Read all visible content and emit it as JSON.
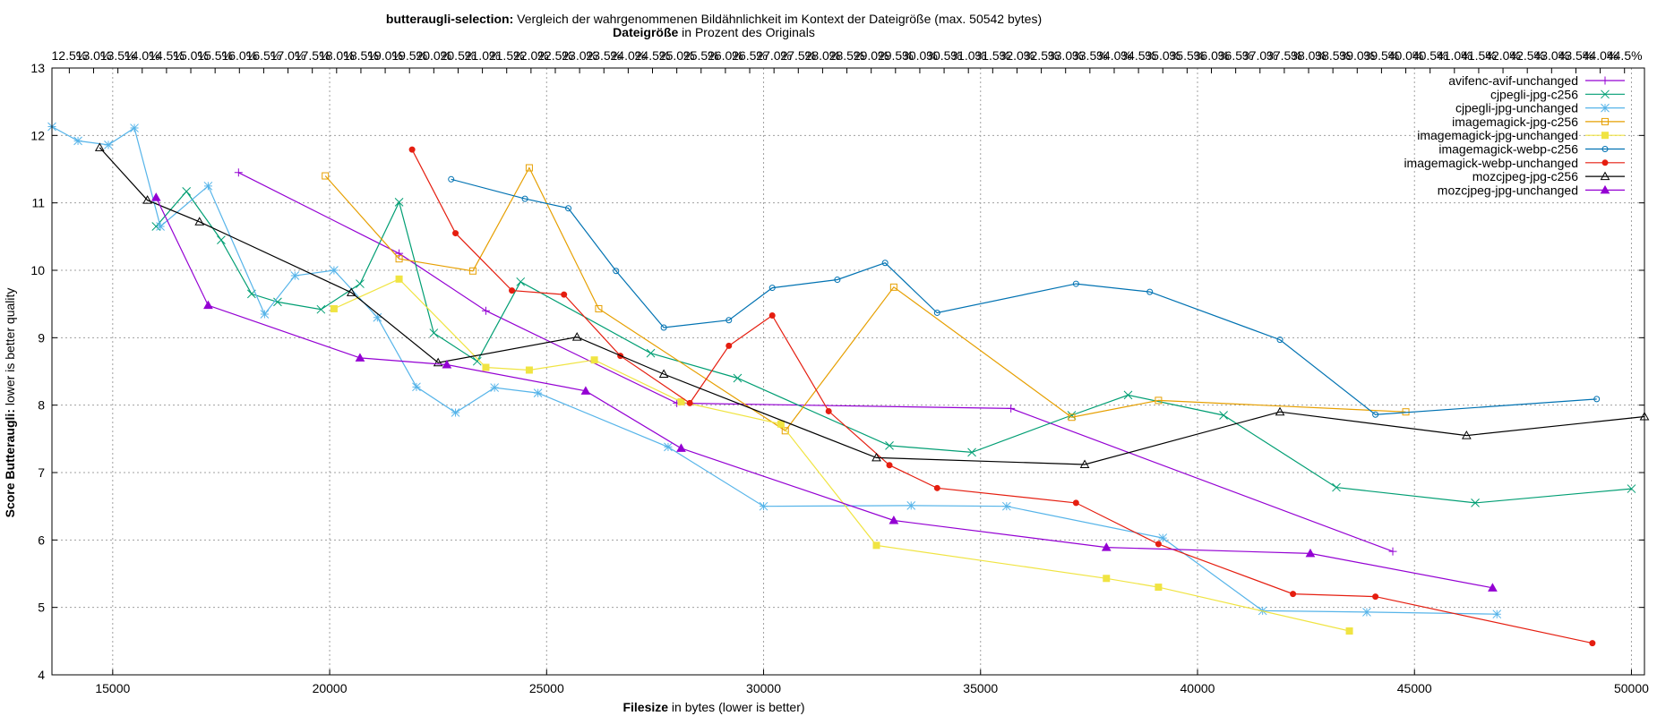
{
  "chart_data": {
    "type": "line",
    "title_bold": "butteraugli-selection:",
    "title_rest": " Vergleich der wahrgenommenen Bildähnlichkeit im Kontext der Dateigröße (max. 50542 bytes)",
    "top_axis_label_bold": "Dateigröße",
    "top_axis_label_rest": " in Prozent des Originals",
    "xlabel_bold": "Filesize",
    "xlabel_rest": " in bytes (lower is better)",
    "ylabel_bold": "Score Butteraugli:",
    "ylabel_rest": " lower is better quality",
    "xlim": [
      13600,
      50300
    ],
    "ylim": [
      4,
      13
    ],
    "x_ticks": [
      15000,
      20000,
      25000,
      30000,
      35000,
      40000,
      45000,
      50000
    ],
    "y_ticks": [
      4,
      5,
      6,
      7,
      8,
      9,
      10,
      11,
      12,
      13
    ],
    "top_ticks": [
      "12.5%",
      "13.0%",
      "13.5%",
      "14.0%",
      "14.5%",
      "15.0%",
      "15.5%",
      "16.0%",
      "16.5%",
      "17.0%",
      "17.5%",
      "18.0%",
      "18.5%",
      "19.0%",
      "19.5%",
      "20.0%",
      "20.5%",
      "21.0%",
      "21.5%",
      "22.0%",
      "22.5%",
      "23.0%",
      "23.5%",
      "24.0%",
      "24.5%",
      "25.0%",
      "25.5%",
      "26.0%",
      "26.5%",
      "27.0%",
      "27.5%",
      "28.0%",
      "28.5%",
      "29.0%",
      "29.5%",
      "30.0%",
      "30.5%",
      "31.0%",
      "31.5%",
      "32.0%",
      "32.5%",
      "33.0%",
      "33.5%",
      "34.0%",
      "34.5%",
      "35.0%",
      "35.5%",
      "36.0%",
      "36.5%",
      "37.0%",
      "37.5%",
      "38.0%",
      "38.5%",
      "39.0%",
      "39.5%",
      "40.0%",
      "40.5%",
      "41.0%",
      "41.5%",
      "42.0%",
      "42.5%",
      "43.0%",
      "43.5%",
      "44.0%",
      "44.5%"
    ],
    "original_size_bytes": 112000,
    "grid": true,
    "legend_position": "top-right",
    "series": [
      {
        "name": "avifenc-avif-unchanged",
        "color": "#9400d3",
        "marker": "plus",
        "x": [
          17900,
          21600,
          23600,
          28000,
          35700,
          44500
        ],
        "y": [
          11.45,
          10.25,
          9.4,
          8.03,
          7.95,
          5.83
        ]
      },
      {
        "name": "cjpegli-jpg-c256",
        "color": "#009e73",
        "marker": "x",
        "x": [
          16000,
          16700,
          17500,
          18200,
          18800,
          19800,
          20700,
          21600,
          22400,
          23400,
          24400,
          27400,
          29400,
          32900,
          34800,
          37100,
          38400,
          40600,
          43200,
          46400,
          50000
        ],
        "y": [
          10.65,
          11.17,
          10.45,
          9.65,
          9.53,
          9.42,
          9.8,
          11.01,
          9.07,
          8.65,
          9.83,
          8.77,
          8.4,
          7.4,
          7.3,
          7.85,
          8.15,
          7.85,
          6.78,
          6.55,
          6.76
        ]
      },
      {
        "name": "cjpegli-jpg-unchanged",
        "color": "#56b4e9",
        "marker": "star",
        "x": [
          13600,
          14200,
          14900,
          15500,
          16100,
          17200,
          18500,
          19200,
          20100,
          21100,
          22000,
          22900,
          23800,
          24800,
          27800,
          30000,
          33400,
          35600,
          39200,
          41500,
          43900,
          46900
        ],
        "y": [
          12.13,
          11.92,
          11.86,
          12.11,
          10.65,
          11.25,
          9.35,
          9.92,
          10.0,
          9.3,
          8.27,
          7.89,
          8.26,
          8.18,
          7.38,
          6.5,
          6.51,
          6.5,
          6.03,
          4.95,
          4.93,
          4.9
        ]
      },
      {
        "name": "imagemagick-jpg-c256",
        "color": "#e69f00",
        "marker": "square",
        "x": [
          19900,
          21600,
          23300,
          24600,
          26200,
          30500,
          33000,
          37100,
          39100,
          44800
        ],
        "y": [
          11.4,
          10.17,
          9.99,
          11.52,
          9.43,
          7.62,
          9.75,
          7.82,
          8.07,
          7.9
        ]
      },
      {
        "name": "imagemagick-jpg-unchanged",
        "color": "#f0e442",
        "marker": "square-filled",
        "x": [
          20100,
          21600,
          23600,
          24600,
          26100,
          28100,
          30400,
          32600,
          37900,
          39100,
          43500
        ],
        "y": [
          9.43,
          9.87,
          8.56,
          8.52,
          8.67,
          8.05,
          7.72,
          5.92,
          5.43,
          5.3,
          4.65
        ]
      },
      {
        "name": "imagemagick-webp-c256",
        "color": "#0072b2",
        "marker": "circle",
        "x": [
          22800,
          24500,
          25500,
          26600,
          27700,
          29200,
          30200,
          31700,
          32800,
          34000,
          37200,
          38900,
          41900,
          44100,
          49200
        ],
        "y": [
          11.35,
          11.06,
          10.92,
          9.99,
          9.15,
          9.26,
          9.74,
          9.86,
          10.11,
          9.37,
          9.8,
          9.68,
          8.97,
          7.86,
          8.09
        ]
      },
      {
        "name": "imagemagick-webp-unchanged",
        "color": "#e51e10",
        "marker": "circle-filled",
        "x": [
          21900,
          22900,
          24200,
          25400,
          26700,
          28300,
          29200,
          30200,
          31500,
          32900,
          34000,
          37200,
          39100,
          42200,
          44100,
          49100
        ],
        "y": [
          11.79,
          10.55,
          9.7,
          9.64,
          8.73,
          8.03,
          8.88,
          9.33,
          7.91,
          7.11,
          6.77,
          6.55,
          5.94,
          5.2,
          5.16,
          4.47
        ]
      },
      {
        "name": "mozcjpeg-jpg-c256",
        "color": "#000000",
        "marker": "triangle",
        "x": [
          14700,
          15800,
          17000,
          20500,
          22500,
          25700,
          27700,
          32600,
          37400,
          41900,
          46200,
          50300
        ],
        "y": [
          11.82,
          11.04,
          10.72,
          9.67,
          8.63,
          9.01,
          8.46,
          7.22,
          7.12,
          7.9,
          7.55,
          7.83
        ]
      },
      {
        "name": "mozcjpeg-jpg-unchanged",
        "color": "#9400d3",
        "marker": "triangle-filled",
        "x": [
          16000,
          17200,
          20700,
          22700,
          25900,
          28100,
          33000,
          37900,
          42600,
          46800
        ],
        "y": [
          11.08,
          9.48,
          8.7,
          8.6,
          8.21,
          7.36,
          6.29,
          5.89,
          5.8,
          5.29
        ]
      }
    ]
  }
}
